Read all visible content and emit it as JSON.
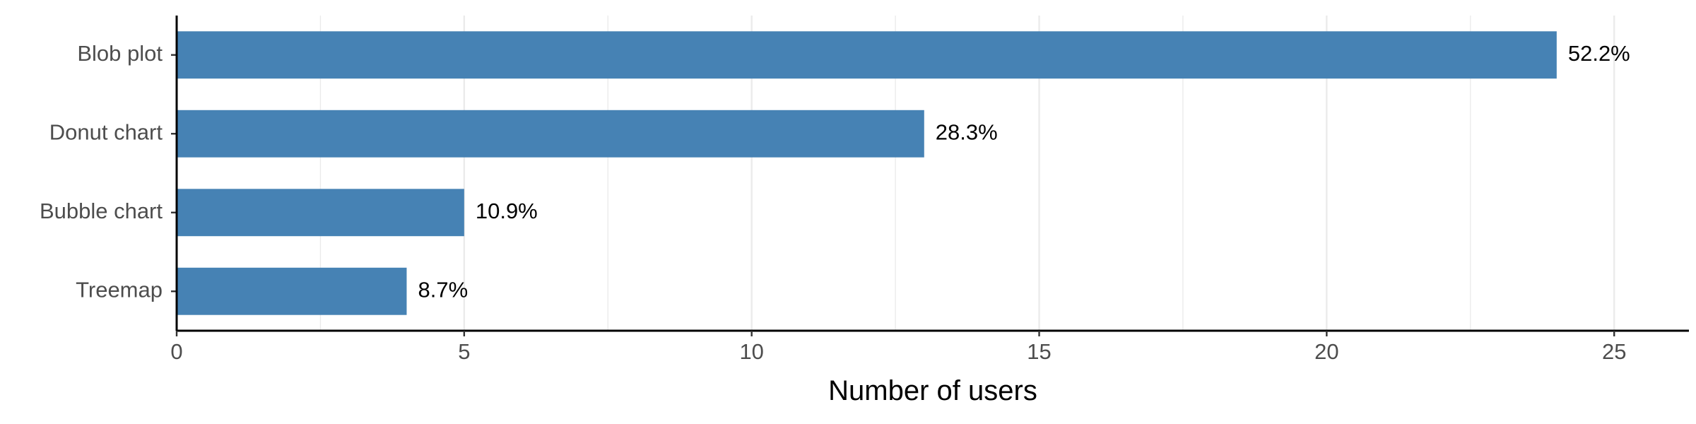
{
  "chart_data": {
    "type": "bar",
    "orientation": "horizontal",
    "categories": [
      "Blob plot",
      "Donut chart",
      "Bubble chart",
      "Treemap"
    ],
    "values": [
      24,
      13,
      5,
      4
    ],
    "labels": [
      "52.2%",
      "28.3%",
      "10.9%",
      "8.7%"
    ],
    "xlabel": "Number of users",
    "ylabel": "",
    "xlim": [
      0,
      26.3
    ],
    "xticks": [
      0,
      5,
      10,
      15,
      20,
      25
    ],
    "xtick_labels": [
      "0",
      "5",
      "10",
      "15",
      "20",
      "25"
    ],
    "grid": true,
    "bar_color": "#4682B4",
    "grid_color": "#EBEBEB"
  }
}
